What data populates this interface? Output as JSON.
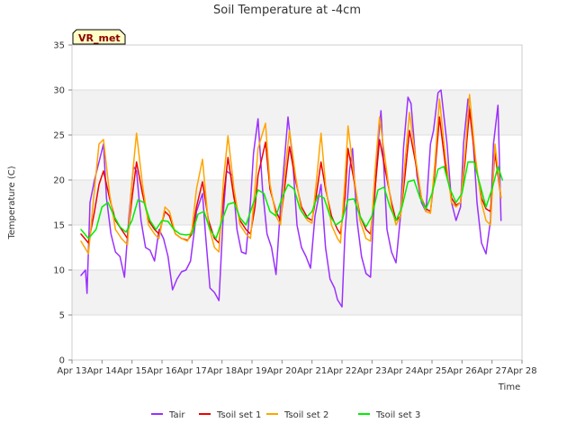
{
  "chart_data": {
    "type": "line",
    "title": "Soil Temperature at -4cm",
    "xlabel": "Time",
    "ylabel": "Temperature (C)",
    "badge": "VR_met",
    "ylim": [
      0,
      35
    ],
    "yticks": [
      0,
      5,
      10,
      15,
      20,
      25,
      30,
      35
    ],
    "xlim": [
      13,
      28
    ],
    "xticks": [
      13,
      14,
      15,
      16,
      17,
      18,
      19,
      20,
      21,
      22,
      23,
      24,
      25,
      26,
      27,
      28
    ],
    "xtick_labels": [
      "Apr 13",
      "Apr 14",
      "Apr 15",
      "Apr 16",
      "Apr 17",
      "Apr 18",
      "Apr 19",
      "Apr 20",
      "Apr 21",
      "Apr 22",
      "Apr 23",
      "Apr 24",
      "Apr 25",
      "Apr 26",
      "Apr 27",
      "Apr 28"
    ],
    "grid": "horizontal bands",
    "legend_position": "bottom-center",
    "series": [
      {
        "name": "Tair",
        "color": "#9b30ff",
        "x": [
          13.3,
          13.45,
          13.5,
          13.6,
          13.75,
          13.9,
          14.05,
          14.15,
          14.3,
          14.45,
          14.6,
          14.75,
          14.9,
          15.05,
          15.15,
          15.3,
          15.45,
          15.6,
          15.75,
          15.9,
          16.05,
          16.2,
          16.35,
          16.5,
          16.65,
          16.8,
          16.95,
          17.1,
          17.15,
          17.35,
          17.45,
          17.6,
          17.75,
          17.9,
          18.05,
          18.15,
          18.35,
          18.5,
          18.65,
          18.8,
          18.95,
          19.05,
          19.2,
          19.35,
          19.5,
          19.65,
          19.8,
          19.95,
          20.1,
          20.2,
          20.35,
          20.5,
          20.65,
          20.8,
          20.95,
          21.1,
          21.3,
          21.45,
          21.6,
          21.75,
          21.85,
          22.0,
          22.1,
          22.25,
          22.35,
          22.5,
          22.65,
          22.8,
          22.95,
          23.05,
          23.2,
          23.3,
          23.5,
          23.65,
          23.8,
          23.95,
          24.05,
          24.2,
          24.3,
          24.5,
          24.65,
          24.8,
          24.95,
          25.05,
          25.2,
          25.3,
          25.5,
          25.65,
          25.8,
          25.95,
          26.05,
          26.2,
          26.35,
          26.5,
          26.65,
          26.8,
          26.95,
          27.05,
          27.2,
          27.3
        ],
        "values": [
          9.4,
          10.0,
          7.4,
          17.5,
          20.0,
          22.0,
          24.0,
          18.0,
          14.0,
          12.0,
          11.5,
          9.2,
          16.0,
          21.5,
          21.0,
          15.5,
          12.5,
          12.2,
          11.0,
          14.5,
          13.5,
          11.5,
          7.8,
          9.0,
          9.8,
          10.0,
          11.0,
          15.0,
          16.5,
          18.5,
          14.0,
          8.0,
          7.5,
          6.6,
          16.5,
          21.0,
          20.5,
          14.5,
          12.0,
          11.8,
          17.5,
          23.0,
          26.8,
          19.0,
          14.0,
          12.5,
          9.5,
          17.0,
          23.0,
          27.0,
          22.5,
          15.0,
          12.5,
          11.5,
          10.2,
          16.0,
          19.5,
          12.5,
          9.0,
          8.0,
          6.7,
          5.9,
          14.0,
          21.0,
          23.5,
          15.5,
          11.5,
          9.6,
          9.2,
          16.0,
          24.0,
          27.7,
          14.5,
          12.0,
          10.8,
          16.0,
          23.5,
          29.2,
          28.5,
          20.5,
          17.5,
          16.5,
          24.0,
          25.5,
          29.7,
          30.0,
          24.0,
          17.5,
          15.5,
          17.0,
          24.0,
          29.0,
          25.5,
          17.5,
          13.0,
          11.8,
          15.5,
          24.0,
          28.3,
          15.5
        ]
      },
      {
        "name": "Tsoil set 1",
        "color": "#ee0000",
        "x": [
          13.3,
          13.55,
          13.75,
          13.9,
          14.05,
          14.25,
          14.45,
          14.65,
          14.85,
          15.0,
          15.15,
          15.35,
          15.55,
          15.75,
          15.9,
          16.1,
          16.25,
          16.45,
          16.65,
          16.85,
          17.0,
          17.15,
          17.35,
          17.55,
          17.75,
          17.9,
          18.05,
          18.2,
          18.4,
          18.6,
          18.8,
          18.95,
          19.1,
          19.2,
          19.45,
          19.6,
          19.8,
          19.95,
          20.1,
          20.25,
          20.45,
          20.65,
          20.85,
          21.0,
          21.15,
          21.3,
          21.45,
          21.65,
          21.85,
          21.95,
          22.1,
          22.2,
          22.4,
          22.6,
          22.8,
          22.95,
          23.1,
          23.25,
          23.45,
          23.65,
          23.8,
          23.95,
          24.1,
          24.25,
          24.45,
          24.65,
          24.8,
          24.95,
          25.1,
          25.25,
          25.45,
          25.65,
          25.8,
          25.95,
          26.1,
          26.25,
          26.45,
          26.65,
          26.8,
          26.95,
          27.1,
          27.3
        ],
        "values": [
          14.0,
          13.0,
          16.5,
          19.5,
          21.0,
          18.0,
          15.5,
          14.5,
          13.5,
          18.0,
          22.0,
          18.5,
          15.5,
          14.5,
          14.0,
          16.5,
          16.0,
          14.0,
          13.5,
          13.3,
          14.0,
          17.0,
          19.8,
          15.5,
          13.5,
          13.0,
          18.0,
          22.5,
          18.0,
          15.5,
          14.5,
          14.0,
          17.0,
          20.5,
          24.2,
          19.0,
          16.5,
          15.5,
          19.5,
          23.7,
          20.0,
          17.0,
          15.8,
          15.5,
          18.5,
          22.0,
          19.0,
          16.0,
          14.5,
          14.0,
          18.0,
          23.5,
          20.0,
          16.0,
          14.5,
          14.0,
          19.0,
          24.5,
          21.0,
          17.5,
          15.5,
          16.0,
          20.5,
          25.5,
          22.0,
          18.0,
          16.8,
          16.5,
          21.0,
          27.0,
          21.5,
          18.0,
          17.2,
          17.5,
          22.0,
          27.8,
          22.0,
          18.0,
          16.8,
          16.5,
          23.0,
          18.0
        ]
      },
      {
        "name": "Tsoil set 2",
        "color": "#ffa500",
        "x": [
          13.3,
          13.55,
          13.75,
          13.9,
          14.05,
          14.25,
          14.45,
          14.65,
          14.85,
          15.0,
          15.15,
          15.35,
          15.55,
          15.75,
          15.9,
          16.1,
          16.25,
          16.45,
          16.65,
          16.85,
          17.0,
          17.15,
          17.35,
          17.55,
          17.75,
          17.9,
          18.05,
          18.2,
          18.4,
          18.6,
          18.8,
          18.95,
          19.1,
          19.2,
          19.45,
          19.6,
          19.8,
          19.95,
          20.1,
          20.25,
          20.45,
          20.65,
          20.85,
          21.0,
          21.15,
          21.3,
          21.45,
          21.65,
          21.85,
          21.95,
          22.1,
          22.2,
          22.4,
          22.6,
          22.8,
          22.95,
          23.1,
          23.25,
          23.45,
          23.65,
          23.8,
          23.95,
          24.1,
          24.25,
          24.45,
          24.65,
          24.8,
          24.95,
          25.1,
          25.25,
          25.45,
          25.65,
          25.8,
          25.95,
          26.1,
          26.25,
          26.45,
          26.65,
          26.8,
          26.95,
          27.1,
          27.3
        ],
        "values": [
          13.2,
          11.8,
          19.0,
          24.0,
          24.5,
          18.5,
          14.5,
          13.5,
          12.8,
          20.0,
          25.2,
          19.5,
          15.0,
          14.0,
          13.5,
          17.0,
          16.5,
          14.0,
          13.5,
          13.2,
          14.5,
          19.0,
          22.3,
          15.0,
          12.5,
          12.0,
          20.0,
          24.9,
          19.0,
          15.0,
          14.0,
          13.5,
          19.0,
          23.5,
          26.3,
          19.5,
          16.0,
          15.0,
          21.0,
          25.5,
          20.5,
          16.5,
          15.5,
          15.2,
          20.0,
          25.2,
          19.5,
          15.0,
          13.5,
          13.0,
          20.0,
          26.0,
          20.5,
          15.5,
          13.5,
          13.2,
          21.0,
          27.0,
          22.0,
          17.0,
          15.0,
          16.0,
          22.0,
          27.5,
          22.5,
          18.0,
          16.5,
          16.3,
          22.0,
          29.0,
          22.5,
          17.5,
          17.0,
          17.5,
          23.0,
          29.5,
          22.5,
          17.5,
          15.5,
          15.0,
          24.0,
          18.0
        ]
      },
      {
        "name": "Tsoil set 3",
        "color": "#00ee00",
        "x": [
          13.3,
          13.55,
          13.8,
          14.0,
          14.2,
          14.4,
          14.6,
          14.8,
          15.0,
          15.2,
          15.4,
          15.6,
          15.8,
          16.0,
          16.2,
          16.4,
          16.6,
          16.8,
          17.0,
          17.2,
          17.4,
          17.6,
          17.8,
          18.0,
          18.2,
          18.4,
          18.6,
          18.8,
          19.0,
          19.2,
          19.4,
          19.6,
          19.8,
          20.0,
          20.2,
          20.4,
          20.6,
          20.8,
          21.0,
          21.2,
          21.4,
          21.6,
          21.8,
          22.0,
          22.2,
          22.4,
          22.6,
          22.8,
          23.0,
          23.2,
          23.4,
          23.6,
          23.8,
          24.0,
          24.2,
          24.4,
          24.6,
          24.8,
          25.0,
          25.2,
          25.4,
          25.6,
          25.8,
          26.0,
          26.2,
          26.4,
          26.6,
          26.8,
          27.0,
          27.2,
          27.35
        ],
        "values": [
          14.5,
          13.5,
          14.5,
          17.0,
          17.5,
          16.0,
          14.8,
          14.2,
          15.5,
          17.8,
          17.5,
          15.5,
          14.5,
          15.5,
          15.4,
          14.5,
          14.0,
          13.9,
          14.0,
          16.2,
          16.5,
          14.5,
          13.5,
          15.5,
          17.3,
          17.5,
          15.8,
          15.0,
          17.0,
          18.9,
          18.5,
          16.5,
          16.0,
          18.0,
          19.5,
          19.0,
          16.8,
          15.8,
          16.5,
          18.3,
          18.0,
          16.0,
          15.0,
          15.5,
          17.8,
          17.9,
          16.0,
          14.8,
          16.0,
          18.9,
          19.2,
          17.0,
          15.5,
          17.0,
          19.8,
          20.0,
          18.0,
          16.8,
          18.5,
          21.2,
          21.5,
          19.0,
          17.5,
          18.5,
          22.0,
          22.0,
          19.5,
          17.0,
          19.0,
          21.5,
          20.0
        ]
      }
    ]
  }
}
